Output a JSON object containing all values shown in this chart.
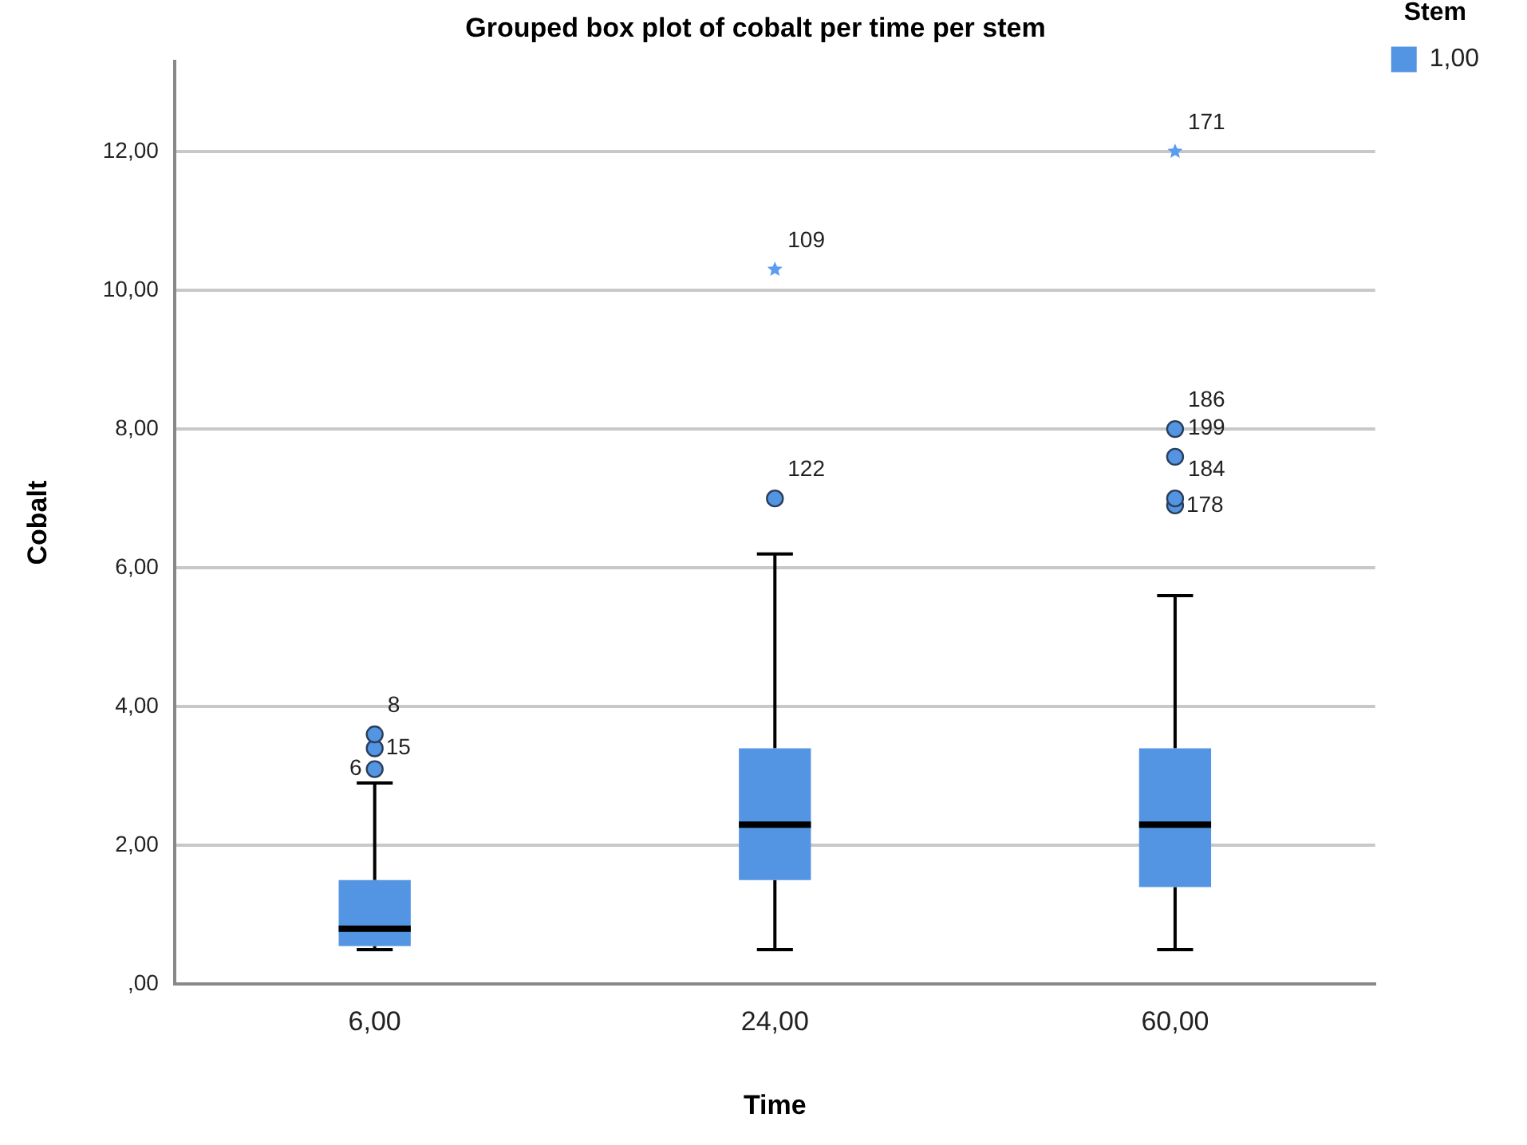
{
  "chart_data": {
    "type": "box",
    "title": "Grouped box plot of cobalt per time per stem",
    "xlabel": "Time",
    "ylabel": "Cobalt",
    "legend_title": "Stem",
    "legend": "top right",
    "grid": "y",
    "categories": [
      "6,00",
      "24,00",
      "60,00"
    ],
    "ylim": [
      0,
      13.3
    ],
    "yticks": [
      {
        "value": 0,
        "label": ",00"
      },
      {
        "value": 2,
        "label": "2,00"
      },
      {
        "value": 4,
        "label": "4,00"
      },
      {
        "value": 6,
        "label": "6,00"
      },
      {
        "value": 8,
        "label": "8,00"
      },
      {
        "value": 10,
        "label": "10,00"
      },
      {
        "value": 12,
        "label": "12,00"
      }
    ],
    "series": [
      {
        "name": "1,00",
        "color": "#5394e3",
        "boxes": [
          {
            "low": 0.5,
            "q1": 0.55,
            "median": 0.8,
            "q3": 1.5,
            "high": 2.9
          },
          {
            "low": 0.5,
            "q1": 1.5,
            "median": 2.3,
            "q3": 3.4,
            "high": 6.2
          },
          {
            "low": 0.5,
            "q1": 1.4,
            "median": 2.3,
            "q3": 3.4,
            "high": 5.6
          }
        ]
      },
      {
        "type": "scatter",
        "marker": "circle",
        "color": "#5394e3",
        "x": [
          "6,00",
          "6,00",
          "6,00",
          "24,00",
          "60,00",
          "60,00",
          "60,00",
          "60,00"
        ],
        "values": [
          3.1,
          3.4,
          3.6,
          7.0,
          6.9,
          7.0,
          7.6,
          8.0
        ]
      },
      {
        "type": "scatter",
        "marker": "star",
        "color": "#5b9bf0",
        "x": [
          "24,00",
          "60,00"
        ],
        "values": [
          10.3,
          12.0
        ]
      }
    ],
    "annotations": [
      {
        "text": "8",
        "x": "6,00",
        "y": 3.6
      },
      {
        "text": "15",
        "x": "6,00",
        "y": 3.4
      },
      {
        "text": "6",
        "x": "6,00",
        "y": 3.1
      },
      {
        "text": "109",
        "x": "24,00",
        "y": 10.3
      },
      {
        "text": "122",
        "x": "24,00",
        "y": 7.0
      },
      {
        "text": "171",
        "x": "60,00",
        "y": 12.0
      },
      {
        "text": "186",
        "x": "60,00",
        "y": 8.0
      },
      {
        "text": "199",
        "x": "60,00",
        "y": 7.6
      },
      {
        "text": "184",
        "x": "60,00",
        "y": 7.0
      },
      {
        "text": "178",
        "x": "60,00",
        "y": 6.9
      }
    ]
  }
}
